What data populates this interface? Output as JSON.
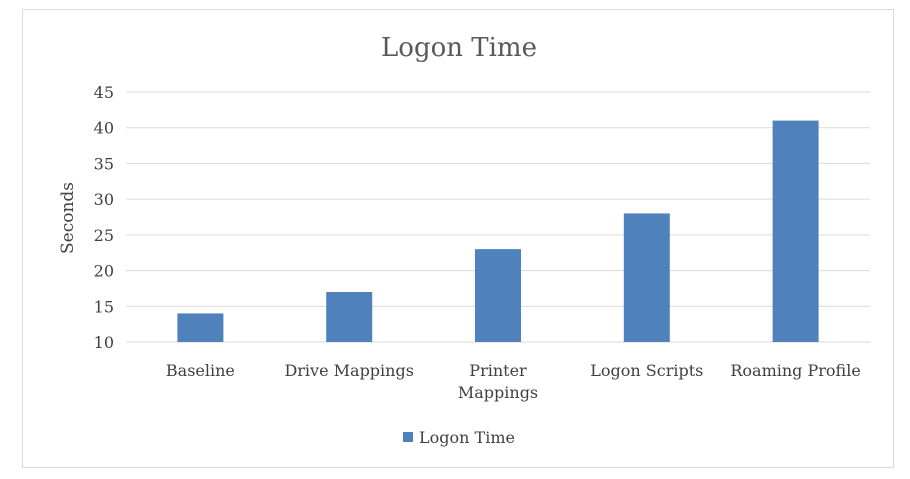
{
  "chart_data": {
    "type": "bar",
    "title": "Logon Time",
    "xlabel": "",
    "ylabel": "Seconds",
    "categories": [
      "Baseline",
      "Drive Mappings",
      "Printer Mappings",
      "Logon Scripts",
      "Roaming Profile"
    ],
    "series": [
      {
        "name": "Logon Time",
        "values": [
          14,
          17,
          23,
          28,
          41
        ]
      }
    ],
    "ylim": [
      10,
      45
    ],
    "yticks": [
      10,
      15,
      20,
      25,
      30,
      35,
      40,
      45
    ],
    "grid": true,
    "legend": "bottom",
    "colors": {
      "bar": "#4f81bd",
      "grid": "#d9d9d9",
      "text": "#404040",
      "title": "#595959"
    }
  }
}
